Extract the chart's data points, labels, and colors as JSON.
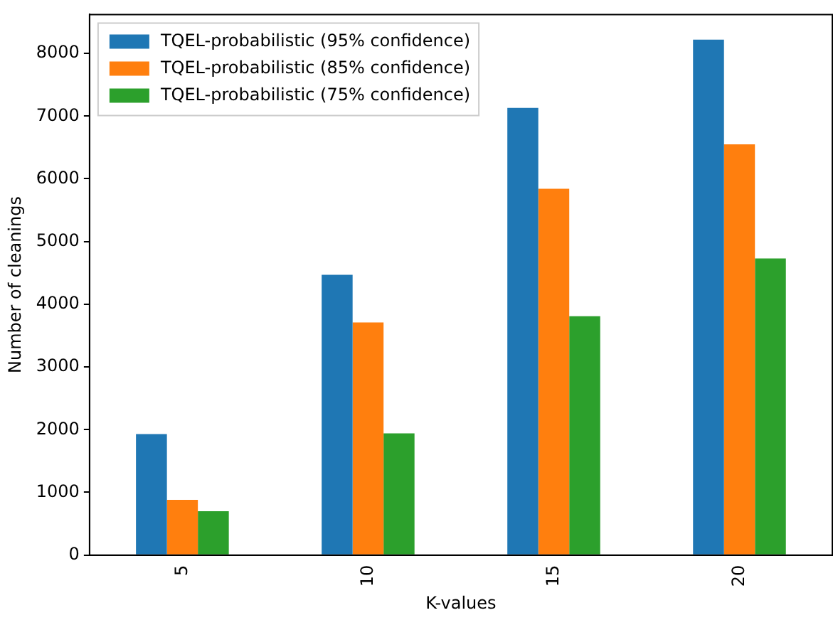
{
  "chart_data": {
    "type": "bar",
    "xlabel": "K-values",
    "ylabel": "Number of cleanings",
    "categories": [
      "5",
      "10",
      "15",
      "20"
    ],
    "series": [
      {
        "name": "TQEL-probabilistic (95% confidence)",
        "color": "#1f77b4",
        "values": [
          1930,
          4470,
          7130,
          8220
        ]
      },
      {
        "name": "TQEL-probabilistic (85% confidence)",
        "color": "#ff7f0e",
        "values": [
          880,
          3710,
          5840,
          6550
        ]
      },
      {
        "name": "TQEL-probabilistic (75% confidence)",
        "color": "#2ca02c",
        "values": [
          700,
          1940,
          3810,
          4730
        ]
      }
    ],
    "ylim": [
      0,
      8620
    ],
    "yticks": [
      0,
      1000,
      2000,
      3000,
      4000,
      5000,
      6000,
      7000,
      8000
    ],
    "grid": false,
    "legend": "top left"
  }
}
